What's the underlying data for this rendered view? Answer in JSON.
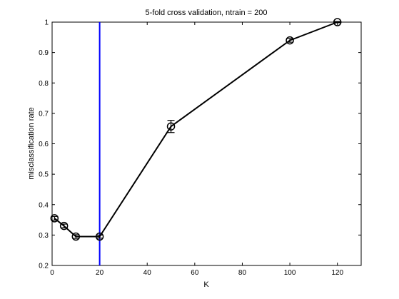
{
  "chart_data": {
    "type": "line",
    "title": "5-fold cross validation, ntrain = 200",
    "xlabel": "K",
    "ylabel": "misclassification rate",
    "xlim": [
      0,
      130
    ],
    "ylim": [
      0.2,
      1.0
    ],
    "xticks": [
      "0",
      "20",
      "40",
      "60",
      "80",
      "100",
      "120"
    ],
    "yticks": [
      "0.2",
      "0.3",
      "0.4",
      "0.5",
      "0.6",
      "0.7",
      "0.8",
      "0.9",
      "1"
    ],
    "series": [
      {
        "x": [
          1,
          5,
          10,
          20,
          50,
          100,
          120
        ],
        "y": [
          0.355,
          0.33,
          0.295,
          0.295,
          0.657,
          0.94,
          1.0
        ],
        "err": [
          0.006,
          0.006,
          0.006,
          0.005,
          0.02,
          0.006,
          0.002
        ],
        "color": "#000000",
        "marker": "circle"
      }
    ],
    "vline": {
      "x": 20,
      "color": "#0000ff"
    },
    "grid": false,
    "box": true
  }
}
